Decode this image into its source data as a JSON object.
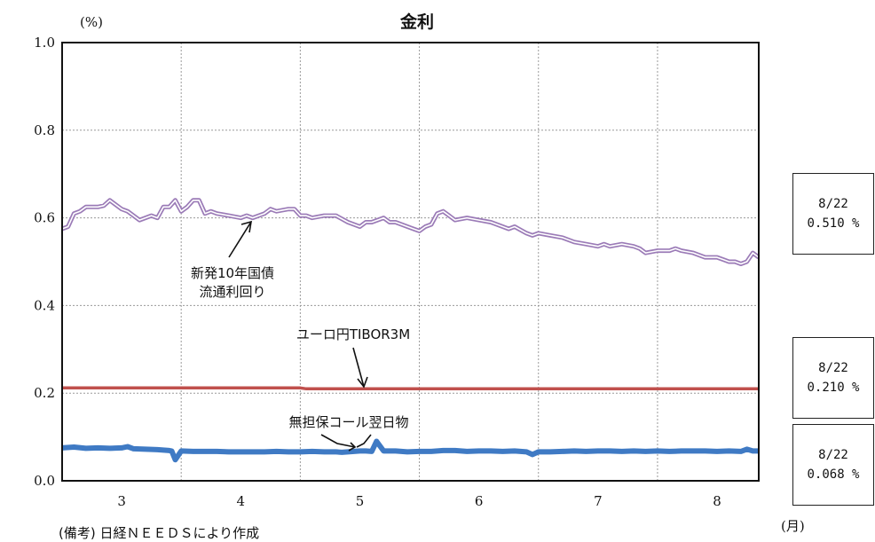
{
  "chart_data": {
    "type": "line",
    "title": "金利",
    "ylabel": "(%)",
    "xlabel": "(月)",
    "ylim": [
      0.0,
      1.0
    ],
    "yticks": [
      "1.0",
      "0.8",
      "0.6",
      "0.4",
      "0.2",
      "0.0"
    ],
    "xticks": [
      "3",
      "4",
      "5",
      "6",
      "7",
      "8"
    ],
    "xrange": [
      2.5,
      8.35
    ],
    "grid": true,
    "series": [
      {
        "name": "新発10年国債流通利回り",
        "color": "#9b7bb7",
        "style": "double",
        "x": [
          2.5,
          2.55,
          2.6,
          2.65,
          2.7,
          2.8,
          2.85,
          2.9,
          3.0,
          3.05,
          3.1,
          3.15,
          3.2,
          3.25,
          3.3,
          3.35,
          3.4,
          3.45,
          3.5,
          3.55,
          3.6,
          3.65,
          3.7,
          3.75,
          3.8,
          3.9,
          4.0,
          4.05,
          4.1,
          4.2,
          4.25,
          4.3,
          4.4,
          4.45,
          4.5,
          4.55,
          4.6,
          4.7,
          4.8,
          4.9,
          5.0,
          5.05,
          5.1,
          5.2,
          5.25,
          5.3,
          5.4,
          5.45,
          5.5,
          5.55,
          5.6,
          5.65,
          5.7,
          5.8,
          5.9,
          6.0,
          6.1,
          6.2,
          6.25,
          6.3,
          6.4,
          6.45,
          6.5,
          6.6,
          6.7,
          6.8,
          6.9,
          7.0,
          7.05,
          7.1,
          7.2,
          7.3,
          7.35,
          7.4,
          7.5,
          7.6,
          7.65,
          7.7,
          7.8,
          7.85,
          7.9,
          8.0,
          8.05,
          8.1,
          8.15,
          8.2,
          8.25,
          8.3,
          8.35
        ],
        "values": [
          0.575,
          0.58,
          0.61,
          0.615,
          0.625,
          0.625,
          0.628,
          0.64,
          0.62,
          0.615,
          0.605,
          0.595,
          0.6,
          0.605,
          0.6,
          0.625,
          0.625,
          0.64,
          0.615,
          0.625,
          0.64,
          0.64,
          0.61,
          0.615,
          0.61,
          0.605,
          0.6,
          0.605,
          0.6,
          0.61,
          0.62,
          0.615,
          0.62,
          0.62,
          0.605,
          0.605,
          0.6,
          0.605,
          0.605,
          0.59,
          0.58,
          0.59,
          0.59,
          0.6,
          0.59,
          0.59,
          0.58,
          0.575,
          0.57,
          0.58,
          0.585,
          0.61,
          0.615,
          0.595,
          0.6,
          0.595,
          0.59,
          0.58,
          0.575,
          0.58,
          0.565,
          0.56,
          0.565,
          0.56,
          0.555,
          0.545,
          0.54,
          0.535,
          0.54,
          0.535,
          0.54,
          0.535,
          0.53,
          0.52,
          0.525,
          0.525,
          0.53,
          0.525,
          0.52,
          0.515,
          0.51,
          0.51,
          0.505,
          0.5,
          0.5,
          0.495,
          0.5,
          0.52,
          0.51
        ]
      },
      {
        "name": "ユーロ円TIBOR3M",
        "color": "#c0504d",
        "style": "thick",
        "x": [
          2.5,
          4.5,
          4.55,
          8.35
        ],
        "values": [
          0.212,
          0.212,
          0.21,
          0.21
        ]
      },
      {
        "name": "無担保コール翌日物",
        "color": "#3f7ac4",
        "style": "very-thick",
        "x": [
          2.5,
          2.6,
          2.7,
          2.8,
          2.9,
          3.0,
          3.05,
          3.1,
          3.2,
          3.3,
          3.4,
          3.42,
          3.45,
          3.5,
          3.6,
          3.7,
          3.8,
          3.9,
          4.0,
          4.2,
          4.3,
          4.4,
          4.5,
          4.6,
          4.7,
          4.8,
          4.85,
          4.9,
          5.0,
          5.05,
          5.1,
          5.14,
          5.2,
          5.3,
          5.4,
          5.5,
          5.6,
          5.7,
          5.8,
          5.9,
          6.0,
          6.1,
          6.2,
          6.3,
          6.4,
          6.45,
          6.5,
          6.6,
          6.7,
          6.8,
          6.9,
          7.0,
          7.1,
          7.2,
          7.3,
          7.4,
          7.5,
          7.6,
          7.7,
          7.8,
          7.9,
          8.0,
          8.1,
          8.2,
          8.25,
          8.3,
          8.35
        ],
        "values": [
          0.075,
          0.077,
          0.074,
          0.075,
          0.074,
          0.075,
          0.078,
          0.073,
          0.072,
          0.071,
          0.069,
          0.068,
          0.048,
          0.068,
          0.067,
          0.067,
          0.067,
          0.066,
          0.066,
          0.066,
          0.067,
          0.066,
          0.066,
          0.067,
          0.066,
          0.066,
          0.065,
          0.066,
          0.068,
          0.068,
          0.067,
          0.09,
          0.068,
          0.068,
          0.066,
          0.067,
          0.067,
          0.069,
          0.069,
          0.067,
          0.068,
          0.068,
          0.067,
          0.068,
          0.066,
          0.06,
          0.066,
          0.066,
          0.067,
          0.068,
          0.067,
          0.068,
          0.068,
          0.067,
          0.068,
          0.067,
          0.068,
          0.067,
          0.068,
          0.068,
          0.068,
          0.067,
          0.068,
          0.067,
          0.072,
          0.068,
          0.068
        ]
      }
    ],
    "annotations": [
      {
        "lines": [
          "新発10年国債",
          "流通利回り"
        ]
      },
      {
        "lines": [
          "ユーロ円TIBOR3M"
        ]
      },
      {
        "lines": [
          "無担保コール翌日物"
        ]
      }
    ]
  },
  "value_boxes": [
    {
      "date": "8/22",
      "value": "0.510 %"
    },
    {
      "date": "8/22",
      "value": "0.210 %"
    },
    {
      "date": "8/22",
      "value": "0.068 %"
    }
  ],
  "note": "(備考) 日経ＮＥＥＤＳにより作成"
}
